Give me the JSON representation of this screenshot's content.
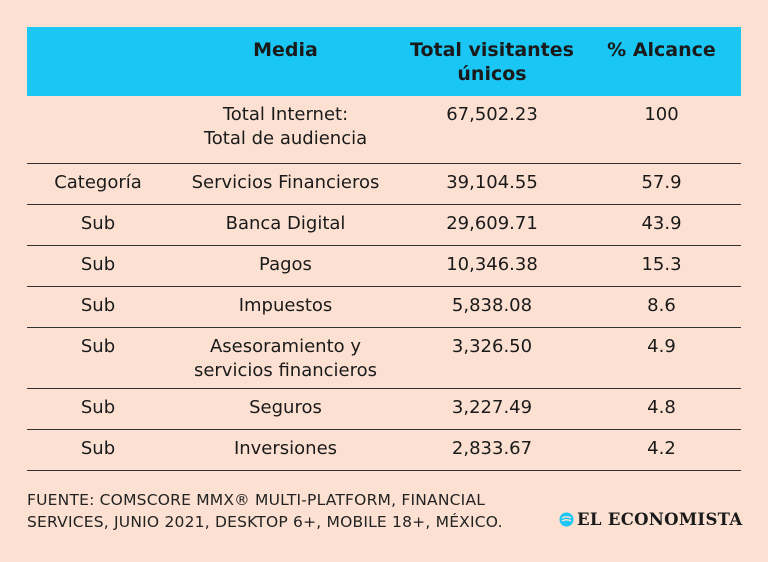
{
  "chart_data": {
    "type": "table",
    "columns": [
      "",
      "Media",
      "Total visitantes únicos",
      "% Alcance"
    ],
    "rows": [
      {
        "nivel": "",
        "media": "Total Internet: Total de audiencia",
        "visitantes": "67,502.23",
        "alcance": "100"
      },
      {
        "nivel": "Categoría",
        "media": "Servicios Financieros",
        "visitantes": "39,104.55",
        "alcance": "57.9"
      },
      {
        "nivel": "Sub",
        "media": "Banca Digital",
        "visitantes": "29,609.71",
        "alcance": "43.9"
      },
      {
        "nivel": "Sub",
        "media": "Pagos",
        "visitantes": "10,346.38",
        "alcance": "15.3"
      },
      {
        "nivel": "Sub",
        "media": "Impuestos",
        "visitantes": "5,838.08",
        "alcance": "8.6"
      },
      {
        "nivel": "Sub",
        "media": "Asesoramiento y servicios financieros",
        "visitantes": "3,326.50",
        "alcance": "4.9"
      },
      {
        "nivel": "Sub",
        "media": "Seguros",
        "visitantes": "3,227.49",
        "alcance": "4.8"
      },
      {
        "nivel": "Sub",
        "media": "Inversiones",
        "visitantes": "2,833.67",
        "alcance": "4.2"
      }
    ]
  },
  "header": {
    "col1": "Media",
    "col2_line1": "Total visitantes",
    "col2_line2": "únicos",
    "col3": "% Alcance"
  },
  "footer": {
    "line1": "FUENTE: COMSCORE MMX® MULTI-PLATFORM, FINANCIAL",
    "line2": "SERVICES, JUNIO 2021, DESKTOP 6+, MOBILE 18+, MÉXICO."
  },
  "logo": {
    "text": "EL ECONOMISTA"
  },
  "colors": {
    "header_bg": "#1ac6f4",
    "page_bg": "#fce1d3",
    "logo_accent": "#1ac6f4"
  }
}
